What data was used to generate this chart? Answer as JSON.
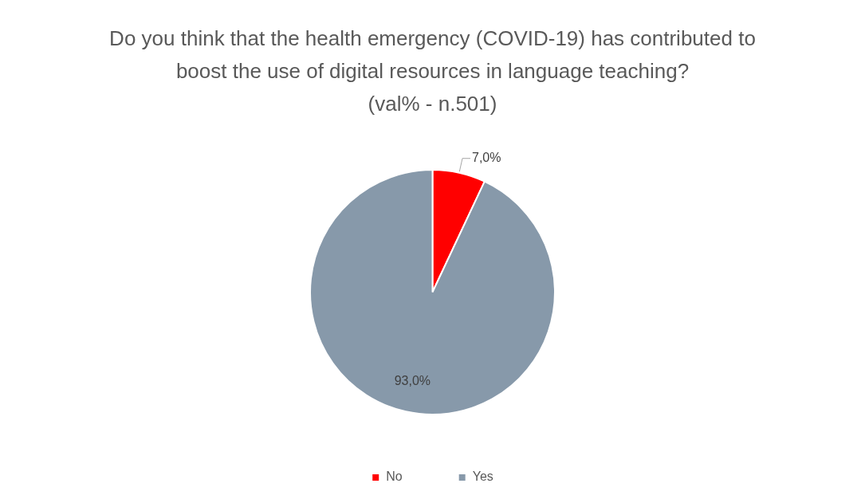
{
  "chart_data": {
    "type": "pie",
    "title": "Do you think that the health emergency (COVID-19) has contributed to boost the use of digital resources in language teaching?",
    "subtitle": "(val% - n.501)",
    "categories": [
      "No",
      "Yes"
    ],
    "values": [
      7.0,
      93.0
    ],
    "colors": [
      "#ff0000",
      "#8799aa"
    ],
    "value_labels": [
      "7,0%",
      "93,0%"
    ],
    "legend": "bottom"
  }
}
